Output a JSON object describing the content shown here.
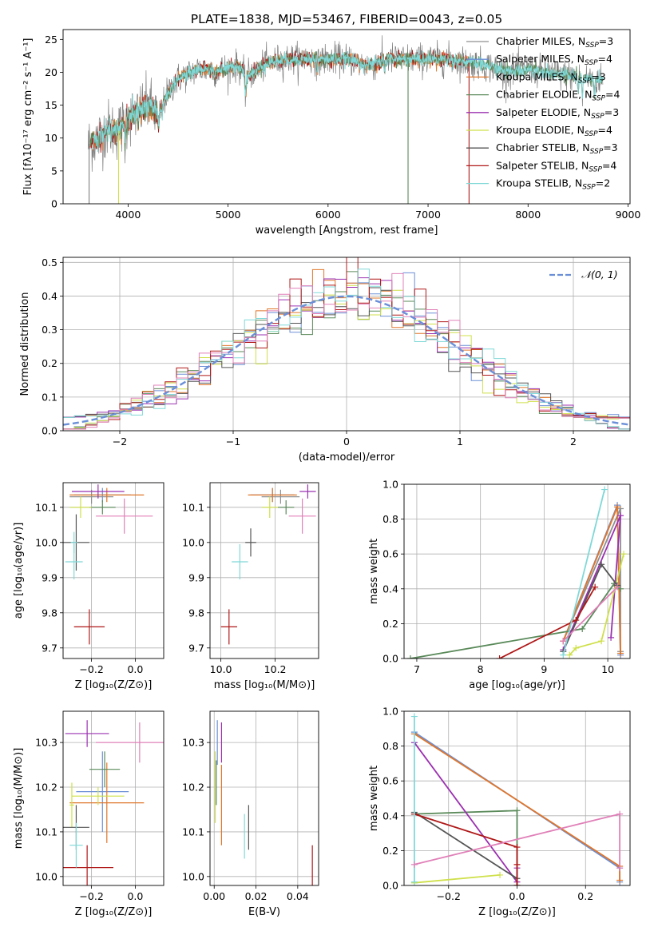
{
  "figure_title": "PLATE=1838, MJD=53467, FIBERID=0043, z=0.05",
  "colors": {
    "Chabrier MILES": "#6b8fd6",
    "Salpeter MILES": "#8f8f8f",
    "Kroupa MILES": "#e0762a",
    "Chabrier ELODIE": "#5a8a5a",
    "Salpeter ELODIE": "#9b30b0",
    "Kroupa ELODIE": "#cfe04a",
    "Chabrier STELIB": "#555555",
    "Salpeter STELIB": "#b01818",
    "Kroupa STELIB": "#80d8d8",
    "model_pink": "#e080b8",
    "spectrum_gray": "#808080",
    "gaussian": "#6a8fd8"
  },
  "chart_data": [
    {
      "id": "spectrum",
      "type": "line",
      "title": "PLATE=1838, MJD=53467, FIBERID=0043, z=0.05",
      "xlabel": "wavelength [Angstrom, rest frame]",
      "ylabel": "Flux [fλ10⁻¹⁷ erg cm⁻² s⁻¹ A⁻¹]",
      "xlim": [
        3350,
        9020
      ],
      "ylim": [
        0,
        26.5
      ],
      "xticks": [
        "4000",
        "5000",
        "6000",
        "7000",
        "8000",
        "9000"
      ],
      "yticks": [
        "0",
        "5",
        "10",
        "15",
        "20",
        "25"
      ],
      "legend_position": "right",
      "legend": [
        {
          "label": "Chabrier MILES, N",
          "sub": "SSP",
          "tail": "=3"
        },
        {
          "label": "Salpeter MILES, N",
          "sub": "SSP",
          "tail": "=4"
        },
        {
          "label": "Kroupa MILES, N",
          "sub": "SSP",
          "tail": "=3"
        },
        {
          "label": "Chabrier ELODIE, N",
          "sub": "SSP",
          "tail": "=4"
        },
        {
          "label": "Salpeter ELODIE, N",
          "sub": "SSP",
          "tail": "=3"
        },
        {
          "label": "Kroupa ELODIE, N",
          "sub": "SSP",
          "tail": "=4"
        },
        {
          "label": "Chabrier STELIB, N",
          "sub": "SSP",
          "tail": "=3"
        },
        {
          "label": "Salpeter STELIB, N",
          "sub": "SSP",
          "tail": "=4"
        },
        {
          "label": "Kroupa STELIB, N",
          "sub": "SSP",
          "tail": "=2"
        }
      ],
      "continuum_anchors": [
        [
          3600,
          9
        ],
        [
          3700,
          10
        ],
        [
          3800,
          11.5
        ],
        [
          3900,
          11
        ],
        [
          4000,
          13
        ],
        [
          4100,
          14
        ],
        [
          4200,
          15
        ],
        [
          4300,
          13.5
        ],
        [
          4400,
          17
        ],
        [
          4500,
          19
        ],
        [
          4700,
          20.5
        ],
        [
          4900,
          20.3
        ],
        [
          5100,
          21
        ],
        [
          5200,
          19.5
        ],
        [
          5400,
          21.5
        ],
        [
          5600,
          22
        ],
        [
          5800,
          22
        ],
        [
          6000,
          22
        ],
        [
          6200,
          22
        ],
        [
          6400,
          21
        ],
        [
          6600,
          22
        ],
        [
          6800,
          22
        ],
        [
          7000,
          22
        ],
        [
          7200,
          22
        ],
        [
          7400,
          21.5
        ],
        [
          7600,
          21
        ],
        [
          7800,
          20
        ],
        [
          8000,
          20.5
        ],
        [
          8200,
          20
        ],
        [
          8400,
          19.5
        ],
        [
          8600,
          19
        ],
        [
          8750,
          18.8
        ]
      ],
      "absorption_lines": [
        [
          3970,
          3,
          5
        ],
        [
          4102,
          1.5,
          4
        ],
        [
          4305,
          2,
          6
        ],
        [
          4341,
          1.5,
          4
        ],
        [
          4861,
          1,
          4
        ],
        [
          5175,
          3,
          8
        ],
        [
          5270,
          1,
          4
        ],
        [
          5895,
          2,
          5
        ],
        [
          6563,
          1.5,
          4
        ],
        [
          8500,
          2,
          5
        ],
        [
          8544,
          3,
          5
        ],
        [
          8664,
          2.5,
          5
        ]
      ],
      "dropouts": [
        [
          6800,
          0
        ],
        [
          3905,
          0
        ],
        [
          7410,
          0
        ],
        [
          3610,
          0
        ]
      ]
    },
    {
      "id": "residuals",
      "type": "bar",
      "xlabel": "(data-model)/error",
      "ylabel": "Normed distribution",
      "xlim": [
        -2.5,
        2.5
      ],
      "ylim": [
        0,
        0.515
      ],
      "xticks": [
        "−2",
        "−1",
        "0",
        "1",
        "2"
      ],
      "yticks": [
        "0.0",
        "0.1",
        "0.2",
        "0.3",
        "0.4",
        "0.5"
      ],
      "legend_position": "top-right",
      "legend": [
        {
          "label": "𝒩(0, 1)",
          "style": "dashed"
        }
      ],
      "bin_width": 0.1,
      "gaussian": {
        "mean": 0,
        "sigma": 1
      }
    },
    {
      "id": "age_vs_Z",
      "type": "scatter",
      "xlabel": "Z [log₁₀(Z/Z⊙)]",
      "ylabel": "age  [log₁₀(age/yr)]",
      "xlim": [
        -0.33,
        0.13
      ],
      "ylim": [
        9.67,
        10.17
      ],
      "xticks": [
        "−0.2",
        "0.0"
      ],
      "yticks": [
        "9.7",
        "9.8",
        "9.9",
        "10.0",
        "10.1"
      ],
      "crosses": [
        {
          "model": "Chabrier MILES",
          "x": -0.15,
          "xerr": 0.13,
          "y": 10.135,
          "yerr": 0.02
        },
        {
          "model": "Salpeter MILES",
          "x": -0.2,
          "xerr": 0.1,
          "y": 10.13,
          "yerr": 0.02
        },
        {
          "model": "Kroupa MILES",
          "x": -0.13,
          "xerr": 0.17,
          "y": 10.135,
          "yerr": 0.02
        },
        {
          "model": "Chabrier ELODIE",
          "x": -0.15,
          "xerr": 0.06,
          "y": 10.1,
          "yerr": 0.02
        },
        {
          "model": "Salpeter ELODIE",
          "x": -0.17,
          "xerr": 0.12,
          "y": 10.145,
          "yerr": 0.02
        },
        {
          "model": "Kroupa ELODIE",
          "x": -0.25,
          "xerr": 0.05,
          "y": 10.1,
          "yerr": 0.03
        },
        {
          "model": "Chabrier STELIB",
          "x": -0.27,
          "xerr": 0.06,
          "y": 10.0,
          "yerr": 0.08
        },
        {
          "model": "Salpeter STELIB",
          "x": -0.21,
          "xerr": 0.07,
          "y": 9.76,
          "yerr": 0.05
        },
        {
          "model": "Kroupa STELIB",
          "x": -0.28,
          "xerr": 0.04,
          "y": 9.945,
          "yerr": 0.05
        },
        {
          "model": "Kroupa STELIB",
          "x": -0.28,
          "xerr": 0.015,
          "y": 10.0,
          "yerr": 0.03
        },
        {
          "model": "model_pink",
          "x": -0.05,
          "xerr": 0.13,
          "y": 10.075,
          "yerr": 0.05
        }
      ]
    },
    {
      "id": "age_vs_mass",
      "type": "scatter",
      "xlabel": "mass [log₁₀(M/M⊙)]",
      "xlim": [
        9.96,
        10.36
      ],
      "ylim": [
        9.67,
        10.17
      ],
      "xticks": [
        "10.0",
        "10.2"
      ],
      "yticks": [
        "9.7",
        "9.8",
        "9.9",
        "10.0",
        "10.1"
      ],
      "crosses": [
        {
          "model": "Chabrier MILES",
          "x": 10.19,
          "xerr": 0.08,
          "y": 10.135,
          "yerr": 0.02
        },
        {
          "model": "Salpeter MILES",
          "x": 10.22,
          "xerr": 0.07,
          "y": 10.13,
          "yerr": 0.02
        },
        {
          "model": "Kroupa MILES",
          "x": 10.19,
          "xerr": 0.09,
          "y": 10.135,
          "yerr": 0.02
        },
        {
          "model": "Chabrier ELODIE",
          "x": 10.24,
          "xerr": 0.03,
          "y": 10.1,
          "yerr": 0.02
        },
        {
          "model": "Salpeter ELODIE",
          "x": 10.32,
          "xerr": 0.03,
          "y": 10.145,
          "yerr": 0.02
        },
        {
          "model": "Kroupa ELODIE",
          "x": 10.18,
          "xerr": 0.03,
          "y": 10.1,
          "yerr": 0.03
        },
        {
          "model": "Chabrier STELIB",
          "x": 10.11,
          "xerr": 0.02,
          "y": 10.0,
          "yerr": 0.04
        },
        {
          "model": "Salpeter STELIB",
          "x": 10.03,
          "xerr": 0.03,
          "y": 9.76,
          "yerr": 0.05
        },
        {
          "model": "Kroupa STELIB",
          "x": 10.07,
          "xerr": 0.03,
          "y": 9.945,
          "yerr": 0.05
        },
        {
          "model": "model_pink",
          "x": 10.3,
          "xerr": 0.05,
          "y": 10.075,
          "yerr": 0.05
        }
      ]
    },
    {
      "id": "weight_vs_age",
      "type": "line",
      "xlabel": "age  [log₁₀(age/yr)]",
      "ylabel": "mass weight",
      "xlim": [
        6.8,
        10.35
      ],
      "ylim": [
        0,
        1
      ],
      "xticks": [
        "7",
        "8",
        "9",
        "10"
      ],
      "yticks": [
        "0.0",
        "0.2",
        "0.4",
        "0.6",
        "0.8",
        "1.0"
      ],
      "series": [
        {
          "model": "Chabrier MILES",
          "x": [
            9.3,
            10.15,
            10.2
          ],
          "y": [
            0.1,
            0.88,
            0.02
          ]
        },
        {
          "model": "Salpeter MILES",
          "x": [
            9.3,
            10.2,
            10.2
          ],
          "y": [
            0.1,
            0.86,
            0.04
          ]
        },
        {
          "model": "Kroupa MILES",
          "x": [
            9.3,
            10.15,
            10.2
          ],
          "y": [
            0.1,
            0.87,
            0.03
          ]
        },
        {
          "model": "Chabrier ELODIE",
          "x": [
            6.9,
            9.6,
            10.1,
            10.2
          ],
          "y": [
            0.0,
            0.17,
            0.43,
            0.4
          ]
        },
        {
          "model": "Salpeter ELODIE",
          "x": [
            9.3,
            10.2,
            10.05
          ],
          "y": [
            0.05,
            0.82,
            0.12
          ]
        },
        {
          "model": "Kroupa ELODIE",
          "x": [
            9.4,
            9.5,
            9.9,
            10.25
          ],
          "y": [
            0.02,
            0.06,
            0.1,
            0.6
          ]
        },
        {
          "model": "Chabrier STELIB",
          "x": [
            9.3,
            9.9,
            10.15
          ],
          "y": [
            0.04,
            0.54,
            0.42
          ]
        },
        {
          "model": "Salpeter STELIB",
          "x": [
            8.3,
            9.5,
            9.8
          ],
          "y": [
            0.0,
            0.22,
            0.41
          ]
        },
        {
          "model": "Kroupa STELIB",
          "x": [
            9.3,
            9.95
          ],
          "y": [
            0.02,
            0.97
          ]
        },
        {
          "model": "model_pink",
          "x": [
            9.3,
            10.15
          ],
          "y": [
            0.1,
            0.41
          ]
        }
      ]
    },
    {
      "id": "mass_vs_Z",
      "type": "scatter",
      "xlabel": "Z [log₁₀(Z/Z⊙)]",
      "ylabel": "mass [log₁₀(M/M⊙)]",
      "xlim": [
        -0.33,
        0.13
      ],
      "ylim": [
        9.98,
        10.37
      ],
      "xticks": [
        "−0.2",
        "0.0"
      ],
      "yticks": [
        "10.0",
        "10.1",
        "10.2",
        "10.3"
      ],
      "crosses": [
        {
          "model": "Chabrier MILES",
          "x": -0.15,
          "xerr": 0.12,
          "y": 10.19,
          "yerr": 0.09
        },
        {
          "model": "Kroupa MILES",
          "x": -0.13,
          "xerr": 0.17,
          "y": 10.165,
          "yerr": 0.09
        },
        {
          "model": "Chabrier ELODIE",
          "x": -0.14,
          "xerr": 0.07,
          "y": 10.24,
          "yerr": 0.04
        },
        {
          "model": "Salpeter ELODIE",
          "x": -0.22,
          "xerr": 0.1,
          "y": 10.32,
          "yerr": 0.03
        },
        {
          "model": "Kroupa ELODIE",
          "x": -0.17,
          "xerr": 0.12,
          "y": 10.18,
          "yerr": 0.02
        },
        {
          "model": "Kroupa ELODIE",
          "x": -0.29,
          "xerr": 0.01,
          "y": 10.16,
          "yerr": 0.05
        },
        {
          "model": "Chabrier STELIB",
          "x": -0.27,
          "xerr": 0.06,
          "y": 10.11,
          "yerr": 0.05
        },
        {
          "model": "Salpeter STELIB",
          "x": -0.22,
          "xerr": 0.12,
          "y": 10.02,
          "yerr": 0.05
        },
        {
          "model": "Kroupa STELIB",
          "x": -0.27,
          "xerr": 0.03,
          "y": 10.07,
          "yerr": 0.05
        },
        {
          "model": "model_pink",
          "x": 0.02,
          "xerr": 0.2,
          "y": 10.3,
          "yerr": 0.045
        }
      ]
    },
    {
      "id": "mass_vs_ebv",
      "type": "scatter",
      "xlabel": "E(B-V)",
      "xlim": [
        -0.002,
        0.05
      ],
      "ylim": [
        9.98,
        10.37
      ],
      "xticks": [
        "0.00",
        "0.02",
        "0.04"
      ],
      "yticks": [
        "10.0",
        "10.1",
        "10.2",
        "10.3"
      ],
      "crosses": [
        {
          "model": "Chabrier MILES",
          "x": 0.0015,
          "xerr": 0,
          "y": 10.3,
          "yerr": 0.05
        },
        {
          "model": "Kroupa MILES",
          "x": 0.0035,
          "xerr": 0,
          "y": 10.16,
          "yerr": 0.09
        },
        {
          "model": "Salpeter ELODIE",
          "x": 0.0035,
          "xerr": 0,
          "y": 10.3,
          "yerr": 0.045
        },
        {
          "model": "Kroupa ELODIE",
          "x": 0.0005,
          "xerr": 0,
          "y": 10.2,
          "yerr": 0.08
        },
        {
          "model": "Chabrier STELIB",
          "x": 0.0165,
          "xerr": 0,
          "y": 10.11,
          "yerr": 0.05
        },
        {
          "model": "Kroupa STELIB",
          "x": 0.0145,
          "xerr": 0,
          "y": 10.09,
          "yerr": 0.05
        },
        {
          "model": "Salpeter STELIB",
          "x": 0.047,
          "xerr": 0,
          "y": 10.02,
          "yerr": 0.05
        },
        {
          "model": "Chabrier ELODIE",
          "x": 0.001,
          "xerr": 0,
          "y": 10.21,
          "yerr": 0.05
        }
      ]
    },
    {
      "id": "weight_vs_Z",
      "type": "line",
      "xlabel": "Z [log₁₀(Z/Z⊙)]",
      "ylabel": "mass weight",
      "xlim": [
        -0.33,
        0.33
      ],
      "ylim": [
        0,
        1
      ],
      "xticks": [
        "−0.2",
        "0.0",
        "0.2"
      ],
      "yticks": [
        "0.0",
        "0.2",
        "0.4",
        "0.6",
        "0.8",
        "1.0"
      ],
      "series": [
        {
          "model": "Chabrier MILES",
          "x": [
            -0.3,
            0.3,
            0.3
          ],
          "y": [
            0.88,
            0.1,
            0.02
          ]
        },
        {
          "model": "Kroupa MILES",
          "x": [
            -0.3,
            0.3,
            0.3
          ],
          "y": [
            0.87,
            0.11,
            0.03
          ]
        },
        {
          "model": "Chabrier ELODIE",
          "x": [
            -0.3,
            0.0,
            0.0
          ],
          "y": [
            0.41,
            0.43,
            0.0
          ]
        },
        {
          "model": "Salpeter ELODIE",
          "x": [
            -0.3,
            0.0,
            0.0
          ],
          "y": [
            0.82,
            0.02,
            0.1
          ]
        },
        {
          "model": "Kroupa ELODIE",
          "x": [
            -0.3,
            -0.05
          ],
          "y": [
            0.015,
            0.06
          ]
        },
        {
          "model": "Chabrier STELIB",
          "x": [
            -0.3,
            0.0,
            0.0
          ],
          "y": [
            0.42,
            0.04,
            0.0
          ]
        },
        {
          "model": "Salpeter STELIB",
          "x": [
            -0.3,
            0.0,
            0.0,
            0.0
          ],
          "y": [
            0.41,
            0.22,
            0.0,
            0.12
          ]
        },
        {
          "model": "Kroupa STELIB",
          "x": [
            -0.3,
            -0.3
          ],
          "y": [
            0.02,
            0.97
          ]
        },
        {
          "model": "model_pink",
          "x": [
            -0.3,
            0.3,
            0.3
          ],
          "y": [
            0.12,
            0.41,
            0.1
          ]
        }
      ]
    }
  ]
}
